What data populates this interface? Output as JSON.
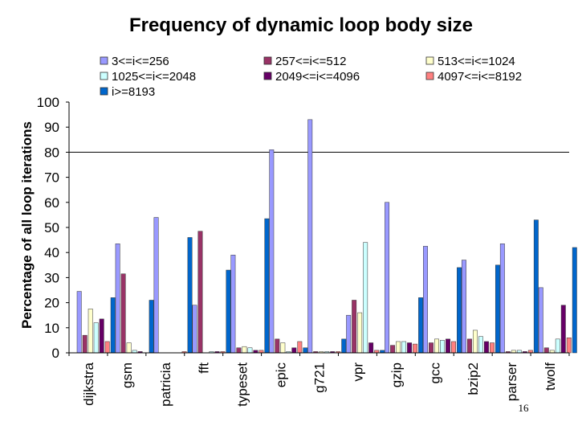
{
  "page_number": "16",
  "chart_data": {
    "type": "bar",
    "title": "Frequency of dynamic loop body size",
    "xlabel": "",
    "ylabel": "Percentage of all loop iterations",
    "ylim": [
      0,
      100
    ],
    "yticks": [
      0,
      10,
      20,
      30,
      40,
      50,
      60,
      70,
      80,
      90,
      100
    ],
    "reference_line": 80,
    "legend_position": "top",
    "categories": [
      "dijkstra",
      "gsm",
      "patricia",
      "fft",
      "typeset",
      "epic",
      "g721",
      "vpr",
      "gzip",
      "gcc",
      "bzip2",
      "parser",
      "twolf"
    ],
    "series": [
      {
        "name": "3<=i<=256",
        "color": "#9999ff",
        "values": [
          24.5,
          43.5,
          54,
          19,
          39,
          81,
          93,
          15,
          60,
          42.5,
          37,
          43.5,
          26
        ]
      },
      {
        "name": "257<=i<=512",
        "color": "#993366",
        "values": [
          7,
          31.5,
          0,
          48.5,
          2,
          5.5,
          0.5,
          21,
          3,
          4,
          5.5,
          0.5,
          2
        ]
      },
      {
        "name": "513<=i<=1024",
        "color": "#ffffcc",
        "values": [
          17.5,
          4,
          0,
          0,
          2.5,
          4,
          0.5,
          16,
          4.5,
          5.5,
          9,
          1,
          1
        ]
      },
      {
        "name": "1025<=i<=2048",
        "color": "#ccffff",
        "values": [
          12,
          1,
          0,
          0.5,
          2,
          0.5,
          0.5,
          44,
          4.5,
          5,
          6.5,
          1,
          5.5
        ]
      },
      {
        "name": "2049<=i<=4096",
        "color": "#660066",
        "values": [
          13.5,
          0.5,
          0,
          0.5,
          1,
          2,
          0.5,
          4,
          4,
          5.5,
          4.5,
          0.5,
          19
        ]
      },
      {
        "name": "4097<=i<=8192",
        "color": "#ff8080",
        "values": [
          4.5,
          0,
          0.5,
          0.5,
          1,
          4.5,
          0.5,
          1,
          3.5,
          4.5,
          4,
          1,
          6
        ]
      },
      {
        "name": "i>=8193",
        "color": "#0066cc",
        "values": [
          22,
          21,
          46,
          33,
          53.5,
          2,
          5.5,
          1,
          22,
          34,
          35,
          53,
          42
        ]
      }
    ]
  }
}
